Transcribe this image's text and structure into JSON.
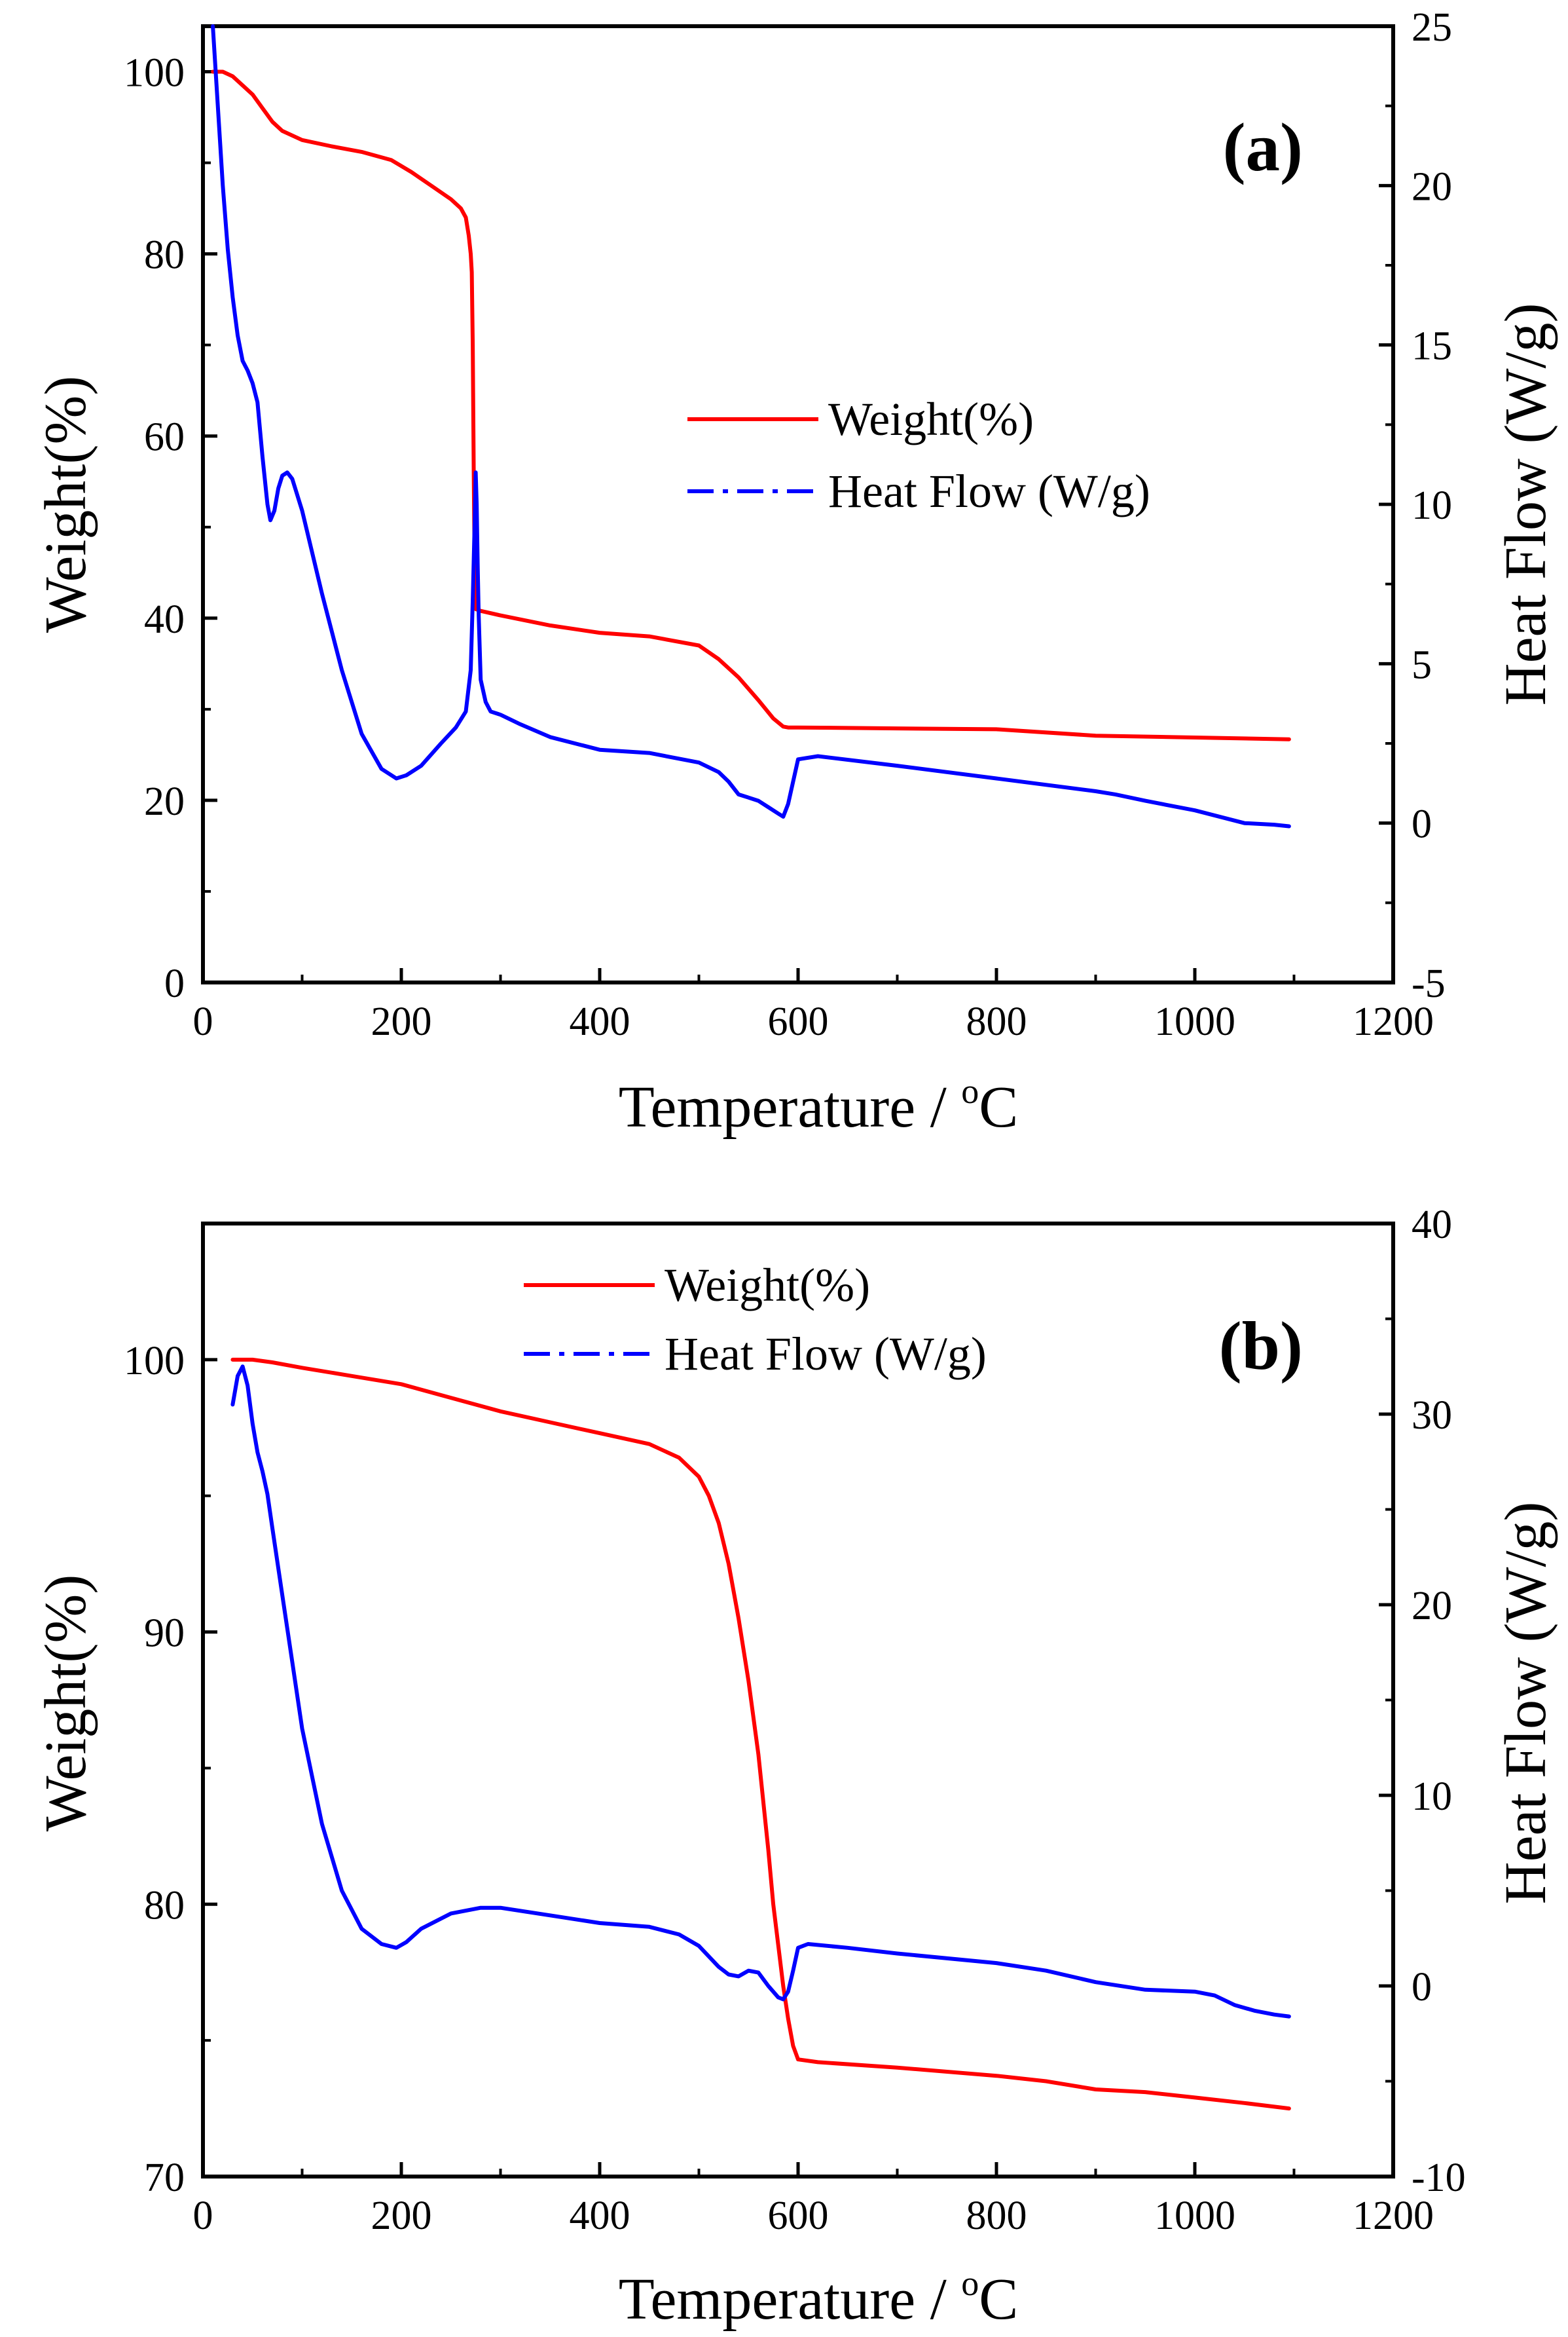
{
  "chart_data": [
    {
      "type": "line",
      "panel_label": "(a)",
      "xlabel": "Temperature / ",
      "xlabel_sup": "o",
      "xlabel_unit": "C",
      "ylabel": "Weight(%)",
      "y2label": "Heat Flow (W/g)",
      "xlim": [
        0,
        1200
      ],
      "ylim": [
        0,
        105
      ],
      "y2lim": [
        -5,
        25
      ],
      "xticks": [
        "0",
        "200",
        "400",
        "600",
        "800",
        "1000",
        "1200"
      ],
      "yticks": [
        "0",
        "20",
        "40",
        "60",
        "80",
        "100"
      ],
      "y2ticks": [
        "-5",
        "0",
        "5",
        "10",
        "15",
        "20",
        "25"
      ],
      "legend_position": "center-right",
      "colors": {
        "weight": "#ff0000",
        "heat": "#0000ff"
      },
      "series": [
        {
          "name": "Weight(%)",
          "axis": "left",
          "style": "solid",
          "x": [
            10,
            20,
            30,
            40,
            50,
            60,
            70,
            80,
            100,
            130,
            160,
            190,
            210,
            230,
            250,
            260,
            265,
            268,
            270,
            271,
            272,
            273,
            274,
            275,
            280,
            300,
            350,
            400,
            450,
            500,
            520,
            540,
            560,
            575,
            585,
            590,
            600,
            700,
            800,
            900,
            1000,
            1095
          ],
          "y": [
            100,
            100,
            99.5,
            98.5,
            97.5,
            96,
            94.5,
            93.5,
            92.5,
            91.8,
            91.2,
            90.3,
            89,
            87.5,
            86,
            85,
            84,
            82,
            80,
            78,
            70,
            56,
            45,
            41,
            40.8,
            40.3,
            39.2,
            38.4,
            38,
            37,
            35.5,
            33.5,
            31,
            29,
            28.1,
            28,
            28,
            27.9,
            27.8,
            27.1,
            26.9,
            26.7
          ]
        },
        {
          "name": "Heat Flow (W/g)",
          "axis": "right",
          "style": "dashdot",
          "x": [
            10,
            15,
            20,
            25,
            30,
            35,
            40,
            45,
            50,
            55,
            60,
            65,
            68,
            72,
            76,
            80,
            85,
            90,
            100,
            120,
            140,
            160,
            180,
            195,
            205,
            220,
            240,
            255,
            265,
            270,
            272,
            274,
            275,
            276,
            277,
            278,
            280,
            285,
            290,
            300,
            320,
            350,
            400,
            450,
            500,
            520,
            530,
            540,
            550,
            560,
            570,
            580,
            585,
            590,
            600,
            620,
            700,
            800,
            900,
            920,
            950,
            1000,
            1050,
            1080,
            1095
          ],
          "y": [
            25,
            22.5,
            20,
            18,
            16.5,
            15.3,
            14.5,
            14.2,
            13.8,
            13.2,
            11.5,
            10,
            9.5,
            9.8,
            10.5,
            10.9,
            11,
            10.8,
            9.8,
            7.2,
            4.8,
            2.8,
            1.7,
            1.4,
            1.5,
            1.8,
            2.5,
            3,
            3.5,
            4.8,
            7,
            9.5,
            11,
            10,
            8,
            6.5,
            4.5,
            3.8,
            3.5,
            3.4,
            3.1,
            2.7,
            2.3,
            2.2,
            1.9,
            1.6,
            1.3,
            0.9,
            0.8,
            0.7,
            0.5,
            0.3,
            0.2,
            0.6,
            2,
            2.1,
            1.8,
            1.4,
            1,
            0.9,
            0.7,
            0.4,
            0,
            -0.05,
            -0.1
          ]
        }
      ]
    },
    {
      "type": "line",
      "panel_label": "(b)",
      "xlabel": "Temperature / ",
      "xlabel_sup": "o",
      "xlabel_unit": "C",
      "ylabel": "Weight(%)",
      "y2label": "Heat Flow (W/g)",
      "xlim": [
        0,
        1200
      ],
      "ylim": [
        70,
        105
      ],
      "y2lim": [
        -10,
        40
      ],
      "xticks": [
        "0",
        "200",
        "400",
        "600",
        "800",
        "1000",
        "1200"
      ],
      "yticks": [
        "70",
        "80",
        "90",
        "100"
      ],
      "y2ticks": [
        "-10",
        "0",
        "10",
        "20",
        "30",
        "40"
      ],
      "legend_position": "top-center",
      "colors": {
        "weight": "#ff0000",
        "heat": "#0000ff"
      },
      "series": [
        {
          "name": "Weight(%)",
          "axis": "left",
          "style": "solid",
          "x": [
            30,
            50,
            70,
            100,
            150,
            200,
            250,
            300,
            350,
            400,
            450,
            480,
            500,
            510,
            520,
            530,
            540,
            550,
            560,
            570,
            575,
            580,
            585,
            590,
            595,
            600,
            620,
            700,
            800,
            850,
            900,
            950,
            1000,
            1050,
            1095
          ],
          "y": [
            100,
            100,
            99.9,
            99.7,
            99.4,
            99.1,
            98.6,
            98.1,
            97.7,
            97.3,
            96.9,
            96.4,
            95.7,
            95,
            94,
            92.5,
            90.5,
            88.2,
            85.5,
            82,
            80,
            78.5,
            77,
            75.8,
            74.8,
            74.3,
            74.2,
            74,
            73.7,
            73.5,
            73.2,
            73.1,
            72.9,
            72.7,
            72.5
          ]
        },
        {
          "name": "Heat Flow (W/g)",
          "axis": "right",
          "style": "dashdot",
          "x": [
            30,
            35,
            40,
            45,
            50,
            55,
            60,
            65,
            70,
            80,
            90,
            100,
            120,
            140,
            160,
            180,
            195,
            205,
            220,
            250,
            280,
            300,
            350,
            400,
            450,
            480,
            500,
            520,
            530,
            540,
            550,
            560,
            570,
            580,
            585,
            590,
            595,
            600,
            610,
            650,
            700,
            800,
            850,
            900,
            950,
            1000,
            1020,
            1040,
            1060,
            1080,
            1095
          ],
          "y": [
            30.5,
            32,
            32.5,
            31.5,
            29.5,
            28,
            27,
            25.8,
            24,
            20.5,
            17,
            13.5,
            8.5,
            5,
            3,
            2.2,
            2,
            2.3,
            3,
            3.8,
            4.1,
            4.1,
            3.7,
            3.3,
            3.1,
            2.7,
            2.1,
            1,
            0.6,
            0.5,
            0.8,
            0.7,
            0,
            -0.6,
            -0.7,
            -0.3,
            0.8,
            2,
            2.2,
            2,
            1.7,
            1.2,
            0.8,
            0.2,
            -0.2,
            -0.3,
            -0.5,
            -1,
            -1.3,
            -1.5,
            -1.6
          ]
        }
      ]
    }
  ]
}
